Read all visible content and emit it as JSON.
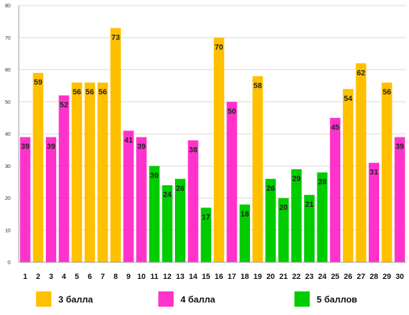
{
  "chart_data": {
    "type": "bar",
    "title": "",
    "xlabel": "",
    "ylabel": "",
    "ylim": [
      0,
      80
    ],
    "yticks": [
      0,
      10,
      20,
      30,
      40,
      50,
      60,
      70,
      80
    ],
    "grid": true,
    "legend_position": "bottom",
    "categories": [
      "1",
      "2",
      "3",
      "4",
      "5",
      "6",
      "7",
      "8",
      "9",
      "10",
      "11",
      "12",
      "13",
      "14",
      "15",
      "16",
      "17",
      "18",
      "19",
      "20",
      "21",
      "22",
      "23",
      "24",
      "25",
      "26",
      "27",
      "28",
      "29",
      "30"
    ],
    "values": [
      39,
      59,
      39,
      52,
      56,
      56,
      56,
      73,
      41,
      39,
      30,
      24,
      26,
      38,
      17,
      70,
      50,
      18,
      58,
      26,
      20,
      29,
      21,
      28,
      45,
      54,
      62,
      31,
      56,
      39
    ],
    "bar_groups": [
      "4 балла",
      "3 балла",
      "4 балла",
      "4 балла",
      "3 балла",
      "3 балла",
      "3 балла",
      "3 балла",
      "4 балла",
      "4 балла",
      "5 баллов",
      "5 баллов",
      "5 баллов",
      "4 балла",
      "5 баллов",
      "3 балла",
      "4 балла",
      "5 баллов",
      "3 балла",
      "5 баллов",
      "5 баллов",
      "5 баллов",
      "5 баллов",
      "5 баллов",
      "4 балла",
      "3 балла",
      "3 балла",
      "4 балла",
      "3 балла",
      "4 балла"
    ],
    "series": [
      {
        "name": "3 балла",
        "color": "#FFC000"
      },
      {
        "name": "4 балла",
        "color": "#FF33CC"
      },
      {
        "name": "5 баллов",
        "color": "#00CC00"
      }
    ]
  }
}
